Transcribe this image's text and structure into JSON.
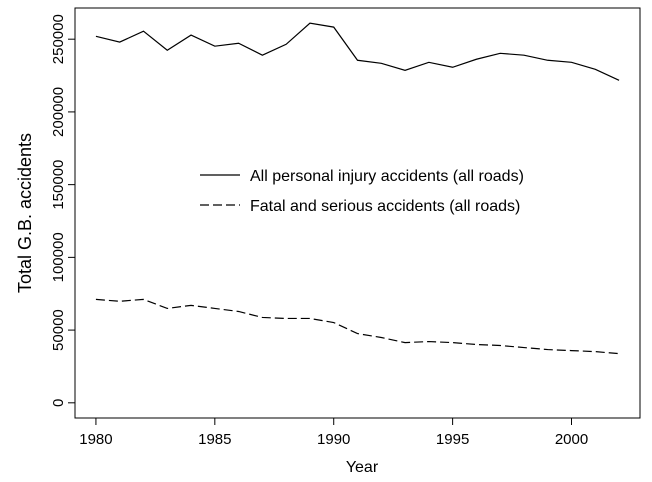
{
  "chart_data": {
    "type": "line",
    "x_label": "Year",
    "y_label": "Total G.B. accidents",
    "x": [
      1980,
      1981,
      1982,
      1983,
      1984,
      1985,
      1986,
      1987,
      1988,
      1989,
      1990,
      1991,
      1992,
      1993,
      1994,
      1995,
      1996,
      1997,
      1998,
      1999,
      2000,
      2001,
      2002
    ],
    "series": [
      {
        "name": "All personal injury accidents (all roads)",
        "color": "#000000",
        "dash": "solid",
        "values": [
          252000,
          248000,
          255500,
          242400,
          252800,
          245200,
          247200,
          239000,
          246500,
          261000,
          258300,
          235500,
          233400,
          228600,
          234100,
          230700,
          236200,
          240300,
          239000,
          235500,
          234100,
          229300,
          221700
        ]
      },
      {
        "name": "Fatal and serious accidents (all roads)",
        "color": "#000000",
        "dash": "dashed",
        "values": [
          71100,
          69800,
          71100,
          64900,
          67000,
          64900,
          62800,
          58700,
          58000,
          58000,
          55200,
          47600,
          44900,
          41400,
          42100,
          41400,
          40100,
          39400,
          38000,
          36600,
          35900,
          35200,
          33800
        ]
      }
    ],
    "xlim": [
      1979.12,
      2002.88
    ],
    "xticks": [
      1980,
      1985,
      1990,
      1995,
      2000
    ],
    "ylim": [
      -10440,
      271440
    ],
    "yticks": [
      0,
      50000,
      100000,
      150000,
      200000,
      250000
    ]
  }
}
